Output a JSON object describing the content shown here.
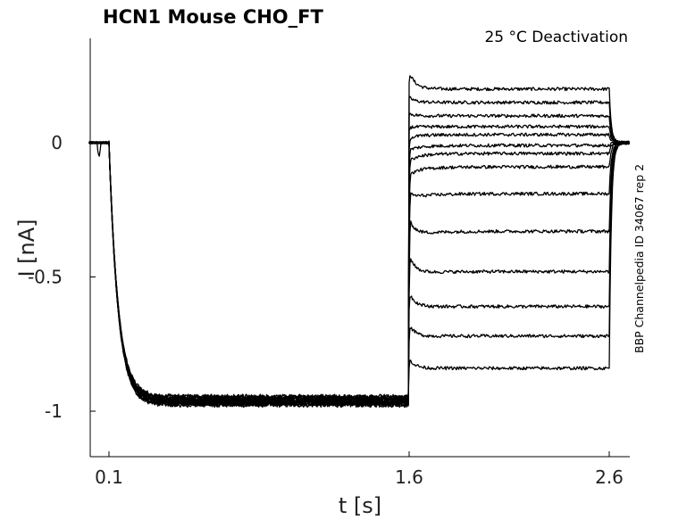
{
  "chart_data": {
    "type": "line",
    "title": "HCN1  Mouse  CHO_FT",
    "annotation": "25 °C  Deactivation",
    "side_label": "BBP Channelpedia ID 34067 rep 2",
    "xlabel": "t [s]",
    "ylabel": "I [nA]",
    "xlim": [
      0.0,
      2.6
    ],
    "ylim": [
      -1.17,
      0.39
    ],
    "xticks": [
      0.1,
      1.6,
      2.6
    ],
    "xtick_labels": [
      "0.1",
      "1.6",
      "2.6"
    ],
    "yticks": [
      0,
      -0.5,
      -1
    ],
    "ytick_labels": [
      "0",
      "-0.5",
      "-1"
    ],
    "grid": false,
    "protocol": {
      "holding_current": 0.0,
      "activation_start": 0.1,
      "activation_end": 1.6,
      "activation_steady_current": -0.96,
      "test_pulse_end": 2.6,
      "recording_end": 2.7
    },
    "series": [
      {
        "peak": 0.27,
        "start": 0.22,
        "end": 0.2
      },
      {
        "peak": 0.17,
        "start": 0.16,
        "end": 0.15
      },
      {
        "peak": 0.11,
        "start": 0.1,
        "end": 0.1
      },
      {
        "peak": 0.06,
        "start": 0.04,
        "end": 0.06
      },
      {
        "peak": 0.02,
        "start": -0.02,
        "end": 0.03
      },
      {
        "peak": -0.02,
        "start": -0.1,
        "end": -0.01
      },
      {
        "peak": -0.06,
        "start": -0.16,
        "end": -0.04
      },
      {
        "peak": -0.11,
        "start": -0.24,
        "end": -0.09
      },
      {
        "peak": -0.17,
        "start": -0.36,
        "end": -0.19
      },
      {
        "peak": -0.26,
        "start": -0.5,
        "end": -0.33
      },
      {
        "peak": -0.4,
        "start": -0.56,
        "end": -0.48
      },
      {
        "peak": -0.55,
        "start": -0.62,
        "end": -0.61
      },
      {
        "peak": -0.67,
        "start": -0.74,
        "end": -0.72
      },
      {
        "peak": -0.8,
        "start": -0.84,
        "end": -0.84
      }
    ]
  }
}
